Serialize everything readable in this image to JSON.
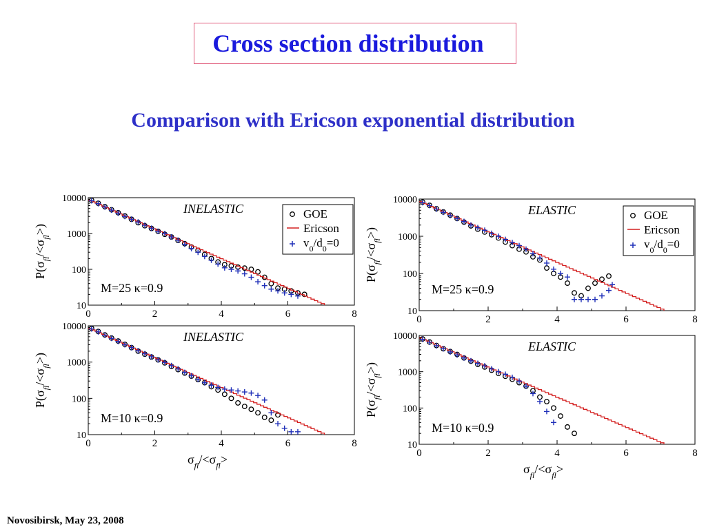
{
  "slide": {
    "title": "Cross section distribution",
    "subtitle": "Comparison with Ericson exponential distribution",
    "footer": "Novosibirsk,  May 23,  2008"
  },
  "colors": {
    "title": "#1a1add",
    "subtitle": "#2e30c8",
    "title_border": "#e05a7a",
    "goe": "#000000",
    "ericson": "#d42020",
    "v0d0": "#1f2fb8"
  },
  "chart_data": [
    {
      "type": "scatter",
      "label": "INELASTIC",
      "annotation": "M=25 κ=0.9",
      "xlabel": "",
      "ylabel": "P(σfl/<σfl>)",
      "xlim": [
        0,
        8
      ],
      "ylim": [
        10,
        10000
      ],
      "yscale": "log",
      "xticks": [
        "0",
        "2",
        "4",
        "6",
        "8"
      ],
      "yticks": [
        "10",
        "100",
        "1000",
        "10000"
      ],
      "legend": [
        "GOE",
        "Ericson",
        "v0/d0=0"
      ],
      "legend_position": "top-right",
      "series": [
        {
          "name": "GOE",
          "marker": "circle",
          "x": [
            0.1,
            0.3,
            0.5,
            0.7,
            0.9,
            1.1,
            1.3,
            1.5,
            1.7,
            1.9,
            2.1,
            2.3,
            2.5,
            2.7,
            2.9,
            3.1,
            3.3,
            3.5,
            3.7,
            3.9,
            4.1,
            4.3,
            4.5,
            4.7,
            4.9,
            5.1,
            5.3,
            5.5,
            5.7,
            5.9,
            6.1,
            6.3,
            6.5
          ],
          "y": [
            8500,
            7000,
            5600,
            4600,
            3800,
            3100,
            2500,
            2000,
            1650,
            1380,
            1150,
            950,
            800,
            640,
            520,
            420,
            340,
            260,
            200,
            160,
            135,
            125,
            115,
            108,
            100,
            85,
            60,
            40,
            30,
            28,
            25,
            22,
            20
          ]
        },
        {
          "name": "Ericson",
          "type": "line",
          "x": [
            0,
            7.1
          ],
          "y": [
            8500,
            10
          ]
        },
        {
          "name": "v0/d0=0",
          "marker": "plus",
          "x": [
            0.1,
            0.3,
            0.5,
            0.7,
            0.9,
            1.1,
            1.3,
            1.5,
            1.7,
            1.9,
            2.1,
            2.3,
            2.5,
            2.7,
            2.9,
            3.1,
            3.3,
            3.5,
            3.7,
            3.9,
            4.1,
            4.3,
            4.5,
            4.7,
            4.9,
            5.1,
            5.3,
            5.5,
            5.7,
            5.9,
            6.1,
            6.3
          ],
          "y": [
            8200,
            6800,
            5500,
            4500,
            3700,
            3000,
            2500,
            2100,
            1700,
            1400,
            1150,
            1000,
            800,
            650,
            500,
            380,
            300,
            230,
            180,
            140,
            110,
            100,
            90,
            75,
            60,
            45,
            35,
            28,
            25,
            22,
            20,
            18
          ]
        }
      ]
    },
    {
      "type": "scatter",
      "label": "ELASTIC",
      "annotation": "M=25 κ=0.9",
      "xlabel": "",
      "ylabel": "P(σfl/<σfl>)",
      "xlim": [
        0,
        8
      ],
      "ylim": [
        10,
        10000
      ],
      "yscale": "log",
      "xticks": [
        "0",
        "2",
        "4",
        "6",
        "8"
      ],
      "yticks": [
        "10",
        "100",
        "1000",
        "10000"
      ],
      "legend": [
        "GOE",
        "Ericson",
        "v0/d0=0"
      ],
      "legend_position": "top-right",
      "series": [
        {
          "name": "GOE",
          "marker": "circle",
          "x": [
            0.1,
            0.3,
            0.5,
            0.7,
            0.9,
            1.1,
            1.3,
            1.5,
            1.7,
            1.9,
            2.1,
            2.3,
            2.5,
            2.7,
            2.9,
            3.1,
            3.3,
            3.5,
            3.7,
            3.9,
            4.1,
            4.3,
            4.5,
            4.7,
            4.9,
            5.1,
            5.3,
            5.5
          ],
          "y": [
            8300,
            6800,
            5500,
            4500,
            3700,
            3000,
            2400,
            1900,
            1550,
            1300,
            1100,
            900,
            700,
            560,
            450,
            380,
            280,
            230,
            140,
            100,
            80,
            55,
            30,
            25,
            40,
            55,
            70,
            85
          ]
        },
        {
          "name": "Ericson",
          "type": "line",
          "x": [
            0,
            7.1
          ],
          "y": [
            8500,
            10
          ]
        },
        {
          "name": "v0/d0=0",
          "marker": "plus",
          "x": [
            0.1,
            0.3,
            0.5,
            0.7,
            0.9,
            1.1,
            1.3,
            1.5,
            1.7,
            1.9,
            2.1,
            2.3,
            2.5,
            2.7,
            2.9,
            3.1,
            3.3,
            3.5,
            3.7,
            3.9,
            4.1,
            4.3,
            4.5,
            4.7,
            4.9,
            5.1,
            5.3,
            5.5,
            5.6
          ],
          "y": [
            8000,
            6700,
            5400,
            4400,
            3600,
            3000,
            2500,
            2000,
            1700,
            1450,
            1200,
            1000,
            820,
            680,
            560,
            450,
            340,
            260,
            190,
            130,
            100,
            80,
            20,
            20,
            20,
            20,
            25,
            35,
            50
          ]
        }
      ]
    },
    {
      "type": "scatter",
      "label": "INELASTIC",
      "annotation": "M=10 κ=0.9",
      "xlabel": "σfl/<σfl>",
      "ylabel": "P(σfl/<σfl>)",
      "xlim": [
        0,
        8
      ],
      "ylim": [
        10,
        10000
      ],
      "yscale": "log",
      "xticks": [
        "0",
        "2",
        "4",
        "6",
        "8"
      ],
      "yticks": [
        "10",
        "100",
        "1000",
        "10000"
      ],
      "series": [
        {
          "name": "GOE",
          "marker": "circle",
          "x": [
            0.1,
            0.3,
            0.5,
            0.7,
            0.9,
            1.1,
            1.3,
            1.5,
            1.7,
            1.9,
            2.1,
            2.3,
            2.5,
            2.7,
            2.9,
            3.1,
            3.3,
            3.5,
            3.7,
            3.9,
            4.1,
            4.3,
            4.5,
            4.7,
            4.9,
            5.1,
            5.3,
            5.5,
            5.7
          ],
          "y": [
            8500,
            7000,
            5600,
            4600,
            3800,
            3100,
            2500,
            2000,
            1650,
            1380,
            1150,
            950,
            760,
            620,
            500,
            410,
            330,
            270,
            210,
            170,
            130,
            100,
            75,
            60,
            50,
            40,
            30,
            25,
            35
          ]
        },
        {
          "name": "Ericson",
          "type": "line",
          "x": [
            0,
            7.1
          ],
          "y": [
            8500,
            10
          ]
        },
        {
          "name": "v0/d0=0",
          "marker": "plus",
          "x": [
            0.1,
            0.3,
            0.5,
            0.7,
            0.9,
            1.1,
            1.3,
            1.5,
            1.7,
            1.9,
            2.1,
            2.3,
            2.5,
            2.7,
            2.9,
            3.1,
            3.3,
            3.5,
            3.7,
            3.9,
            4.1,
            4.3,
            4.5,
            4.7,
            4.9,
            5.1,
            5.3,
            5.5,
            5.7,
            5.9,
            6.1,
            6.3
          ],
          "y": [
            8200,
            6800,
            5500,
            4500,
            3700,
            3000,
            2500,
            2050,
            1700,
            1400,
            1150,
            980,
            800,
            650,
            520,
            420,
            330,
            270,
            230,
            200,
            180,
            170,
            160,
            150,
            140,
            120,
            90,
            40,
            20,
            15,
            12,
            12
          ]
        }
      ]
    },
    {
      "type": "scatter",
      "label": "ELASTIC",
      "annotation": "M=10 κ=0.9",
      "xlabel": "σfl/<σfl>",
      "ylabel": "P(σfl/<σfl>)",
      "xlim": [
        0,
        8
      ],
      "ylim": [
        10,
        10000
      ],
      "yscale": "log",
      "xticks": [
        "0",
        "2",
        "4",
        "6",
        "8"
      ],
      "yticks": [
        "10",
        "100",
        "1000",
        "10000"
      ],
      "series": [
        {
          "name": "GOE",
          "marker": "circle",
          "x": [
            0.1,
            0.3,
            0.5,
            0.7,
            0.9,
            1.1,
            1.3,
            1.5,
            1.7,
            1.9,
            2.1,
            2.3,
            2.5,
            2.7,
            2.9,
            3.1,
            3.3,
            3.5,
            3.7,
            3.9,
            4.1,
            4.3,
            4.5
          ],
          "y": [
            8000,
            6600,
            5300,
            4300,
            3600,
            3000,
            2400,
            1950,
            1600,
            1350,
            1100,
            900,
            750,
            620,
            500,
            400,
            300,
            200,
            150,
            100,
            60,
            30,
            20
          ]
        },
        {
          "name": "Ericson",
          "type": "line",
          "x": [
            0,
            7.1
          ],
          "y": [
            8500,
            10
          ]
        },
        {
          "name": "v0/d0=0",
          "marker": "plus",
          "x": [
            0.1,
            0.3,
            0.5,
            0.7,
            0.9,
            1.1,
            1.3,
            1.5,
            1.7,
            1.9,
            2.1,
            2.3,
            2.5,
            2.7,
            2.9,
            3.1,
            3.3,
            3.5,
            3.7,
            3.9
          ],
          "y": [
            7800,
            6500,
            5200,
            4300,
            3500,
            2900,
            2400,
            2000,
            1700,
            1450,
            1200,
            1000,
            850,
            700,
            550,
            400,
            250,
            150,
            80,
            40
          ]
        }
      ]
    }
  ]
}
